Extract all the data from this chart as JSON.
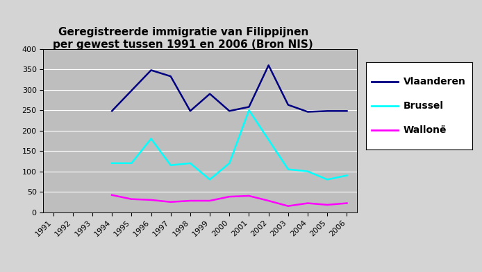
{
  "title": "Geregistreerde immigratie van Filippijnen\nper gewest tussen 1991 en 2006 (Bron NIS)",
  "years": [
    1991,
    1992,
    1993,
    1994,
    1995,
    1996,
    1997,
    1998,
    1999,
    2000,
    2001,
    2002,
    2003,
    2004,
    2005,
    2006
  ],
  "vlaanderen": [
    null,
    null,
    null,
    248,
    null,
    348,
    333,
    248,
    290,
    248,
    258,
    360,
    263,
    246,
    248,
    248
  ],
  "brussel": [
    null,
    null,
    null,
    120,
    120,
    180,
    115,
    120,
    80,
    120,
    250,
    null,
    105,
    100,
    80,
    90
  ],
  "wallonie": [
    null,
    null,
    null,
    42,
    32,
    30,
    25,
    28,
    28,
    38,
    40,
    28,
    15,
    22,
    18,
    22
  ],
  "vlaanderen_color": "#000080",
  "brussel_color": "#00FFFF",
  "wallonie_color": "#FF00FF",
  "ylim": [
    0,
    400
  ],
  "yticks": [
    0,
    50,
    100,
    150,
    200,
    250,
    300,
    350,
    400
  ],
  "plot_bg_color": "#BEBEBE",
  "fig_bg_color": "#D4D4D4",
  "legend_bg_color": "#FFFFFF",
  "legend_labels": [
    "Vlaanderen",
    "Brussel",
    "Wallonë"
  ],
  "title_fontsize": 11,
  "tick_fontsize": 8,
  "legend_fontsize": 10
}
